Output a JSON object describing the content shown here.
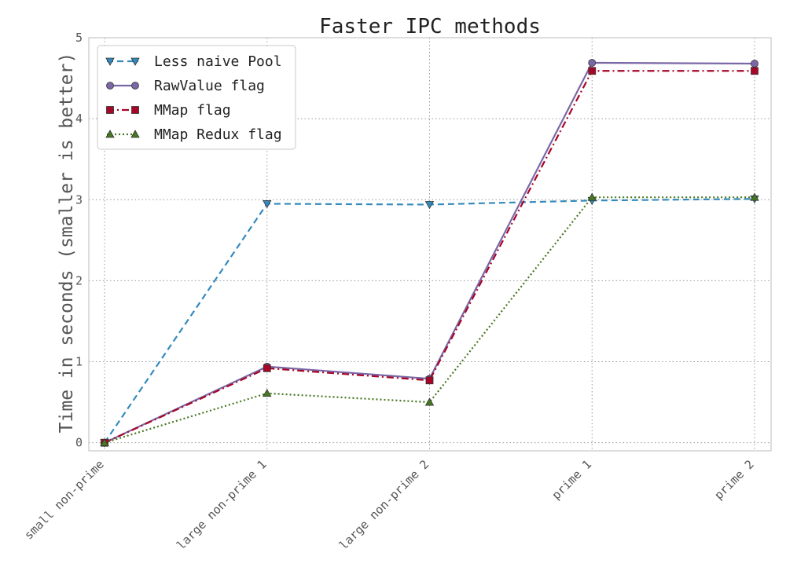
{
  "chart_data": {
    "type": "line",
    "title": "Faster IPC methods",
    "xlabel": "",
    "ylabel": "Time in seconds (smaller is better)",
    "categories": [
      "small non-prime",
      "large non-prime 1",
      "large non-prime 2",
      "prime 1",
      "prime 2"
    ],
    "ylim": [
      -0.1,
      5
    ],
    "yticks": [
      "0",
      "1",
      "2",
      "3",
      "4",
      "5"
    ],
    "grid": true,
    "legend_position": "top-left",
    "series": [
      {
        "name": "Less naive Pool",
        "values": [
          0.0,
          2.95,
          2.94,
          2.99,
          3.01
        ],
        "color": "#348ABD",
        "line_style": "dashed",
        "marker": "triangle-down"
      },
      {
        "name": "RawValue flag",
        "values": [
          0.0,
          0.94,
          0.79,
          4.69,
          4.68
        ],
        "color": "#7A68A6",
        "line_style": "solid",
        "marker": "circle"
      },
      {
        "name": "MMap flag",
        "values": [
          0.0,
          0.92,
          0.77,
          4.59,
          4.59
        ],
        "color": "#A60628",
        "line_style": "dash-dot",
        "marker": "square"
      },
      {
        "name": "MMap Redux flag",
        "values": [
          0.0,
          0.61,
          0.5,
          3.03,
          3.03
        ],
        "color": "#467821",
        "line_style": "dotted",
        "marker": "triangle-up"
      }
    ]
  }
}
